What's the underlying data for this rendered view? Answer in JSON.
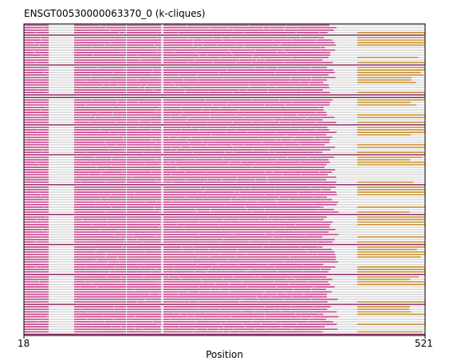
{
  "chart_data": {
    "type": "alignment-track",
    "title": "ENSGT00530000063370_0 (k-cliques)",
    "xlabel": "Position",
    "xlim": [
      18,
      521
    ],
    "x_tick_labels": [
      "18",
      "521"
    ],
    "n_sequences": 125,
    "colors": {
      "aligned": "#c9478e",
      "group_b": "#c9953a",
      "gap_line": "#d8d8d8",
      "separator": "#8a1a5a"
    },
    "magenta_blocks": [
      [
        18,
        26
      ],
      [
        23,
        49
      ],
      [
        81,
        146
      ],
      [
        147,
        190
      ],
      [
        193,
        392
      ]
    ],
    "magenta_tail": [
      392,
      413
    ],
    "orange_block": [
      436,
      521
    ],
    "orange_rows_start_at": 434,
    "separator_rows": [
      4,
      16,
      28,
      29,
      40,
      52,
      64,
      76,
      88,
      100,
      112,
      124
    ]
  }
}
